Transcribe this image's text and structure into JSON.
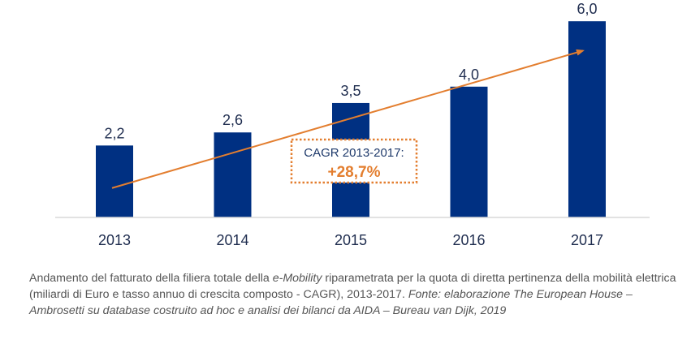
{
  "chart_data": {
    "type": "bar",
    "categories": [
      "2013",
      "2014",
      "2015",
      "2016",
      "2017"
    ],
    "values": [
      2.2,
      2.6,
      3.5,
      4.0,
      6.0
    ],
    "value_labels": [
      "2,2",
      "2,6",
      "3,5",
      "4,0",
      "6,0"
    ],
    "ylim": [
      0,
      6
    ],
    "grid": false,
    "colors": {
      "bar": "#003082",
      "trend": "#e37e2f",
      "annotation_border": "#e37e2f",
      "annotation_text": "#1f3a6b",
      "annotation_value": "#e37e2f"
    },
    "annotation": {
      "label": "CAGR 2013-2017:",
      "value": "+28,7%"
    },
    "trend_line": {
      "from_x": "2013",
      "from_y": 0.9,
      "to_x": "2017",
      "to_y": 5.1
    }
  },
  "caption": {
    "part1": "Andamento del fatturato della filiera totale della ",
    "part1_italic": "e-Mobility",
    "part2": " riparametrata per la quota di diretta pertinenza della mobilità elettrica (miliardi di Euro e tasso annuo di crescita composto - CAGR), 2013-2017. ",
    "source_italic": "Fonte: elaborazione The European House – Ambrosetti su database costruito ad hoc e analisi dei bilanci da AIDA – Bureau van Dijk, 2019"
  }
}
